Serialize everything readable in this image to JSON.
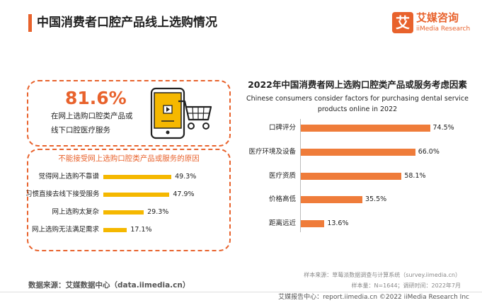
{
  "header": {
    "title": "中国消费者口腔产品线上选购情况",
    "logo_mark": "艾",
    "logo_cn": "艾媒咨询",
    "logo_en": "iiMedia Research"
  },
  "highlight": {
    "percent": "81.6%",
    "line1": "在网上选购口腔类产品或",
    "line2": "线下口腔医疗服务"
  },
  "left_chart": {
    "title": "不能接受网上选购口腔类产品或服务的原因",
    "bar_color": "#f5b800",
    "categories": [
      "觉得网上选购不靠谱",
      "习惯直接去线下接受服务",
      "网上选购太复杂",
      "网上选购无法满足需求"
    ],
    "values": [
      49.3,
      47.9,
      29.3,
      17.1
    ],
    "value_labels": [
      "49.3%",
      "47.9%",
      "29.3%",
      "17.1%"
    ]
  },
  "chart_data": {
    "type": "bar",
    "orientation": "horizontal",
    "title": "2022年中国消费者网上选购口腔类产品或服务考虑因素",
    "subtitle_line1": "Chinese consumers consider factors for purchasing dental service",
    "subtitle_line2": "products online in 2022",
    "categories": [
      "口碑评分",
      "医疗环境及设备",
      "医疗资质",
      "价格高低",
      "距离远近"
    ],
    "values": [
      74.5,
      66.0,
      58.1,
      35.5,
      13.6
    ],
    "value_labels": [
      "74.5%",
      "66.0%",
      "58.1%",
      "35.5%",
      "13.6%"
    ],
    "bar_color": "#ef7c3a",
    "xlim": [
      0,
      100
    ],
    "grid": false
  },
  "source": {
    "data_source": "数据来源：艾媒数据中心（data.iimedia.cn）",
    "sample_source": "样本来源：草莓派数据调查与计算系统（survey.iimedia.cn）",
    "sample_info": "样本量：N=1644；调研时间：2022年7月",
    "footer": "艾媒报告中心：report.iimedia.cn ©2022  iiMedia Research  Inc"
  },
  "colors": {
    "accent": "#e8622c"
  }
}
